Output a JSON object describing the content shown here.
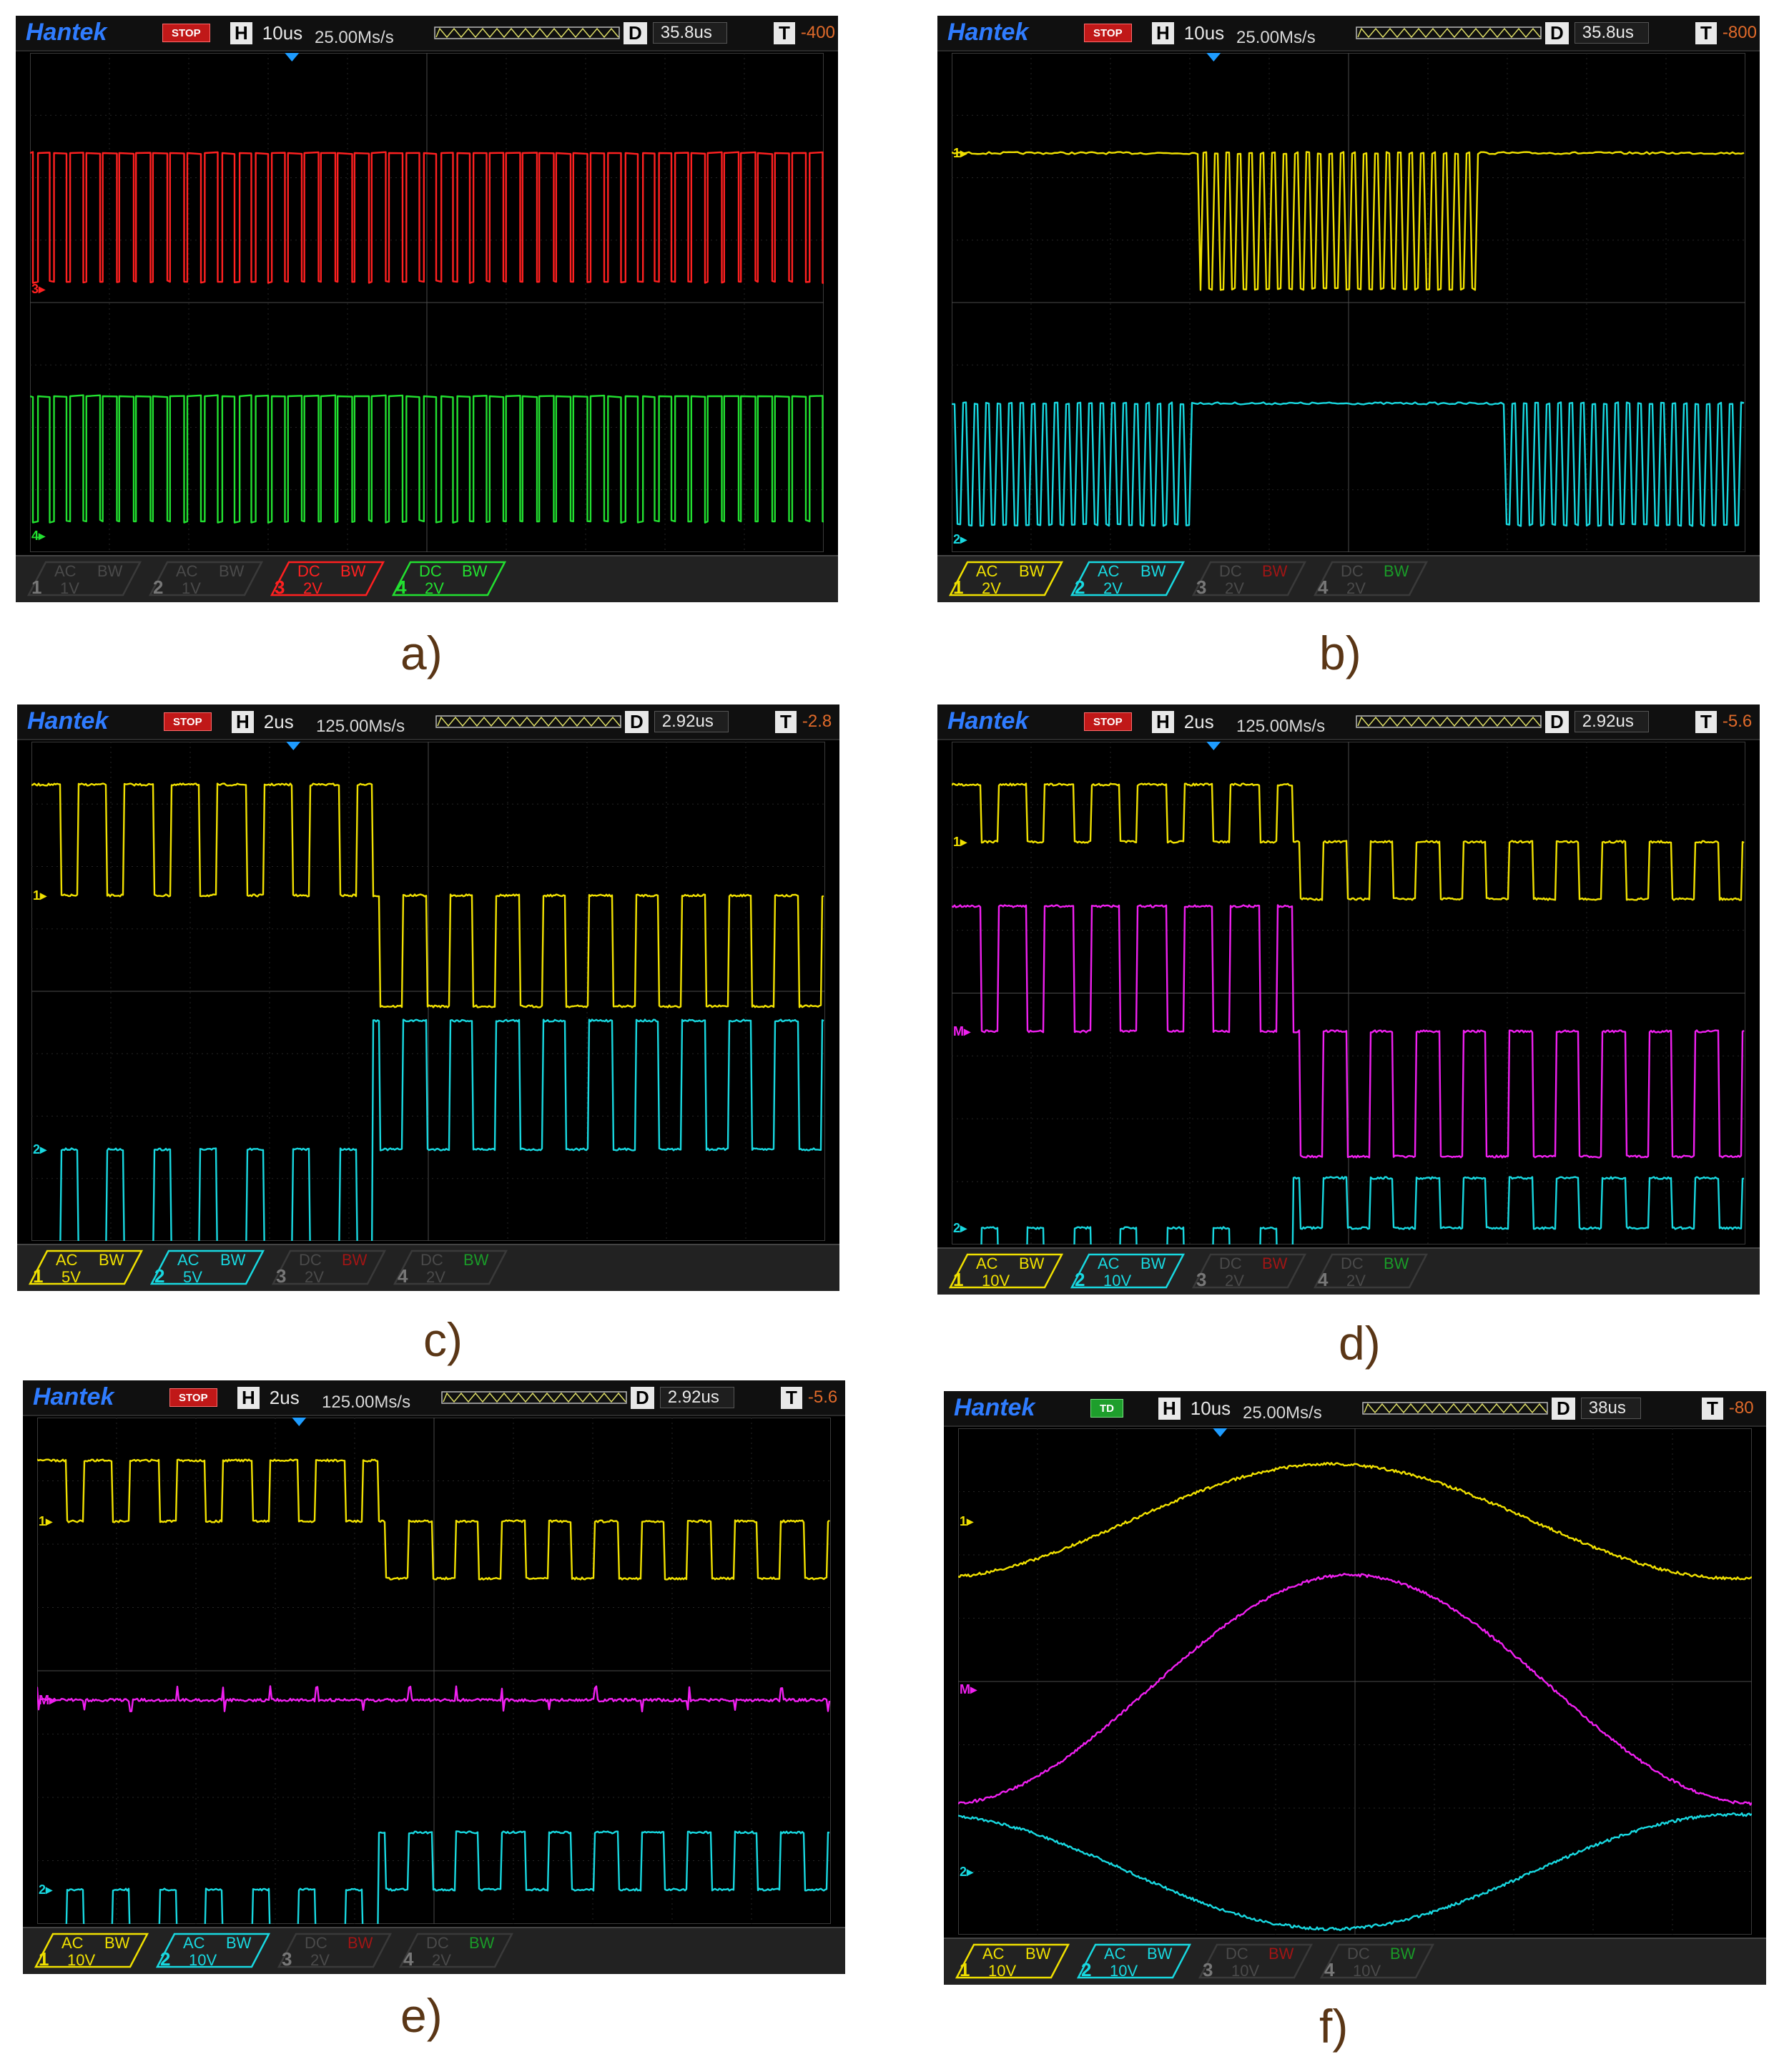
{
  "colors": {
    "ch1": "#f0e000",
    "ch2": "#18d8e0",
    "ch3": "#ff2020",
    "ch4": "#22e030",
    "magenta": "#f020f0",
    "dim": "#555555"
  },
  "scopes": [
    {
      "id": "a",
      "brand": "Hantek",
      "status": "STOP",
      "h_label": "H",
      "timebase": "10us",
      "rate": "25.00Ms/s",
      "d_label": "D",
      "delay": "35.8us",
      "t_label": "T",
      "trigger": "-400",
      "traces": [
        {
          "channel": "3",
          "color": "#ff2020",
          "kind": "square",
          "marker": "3"
        },
        {
          "channel": "4",
          "color": "#22e030",
          "kind": "square",
          "marker": "4"
        }
      ],
      "channels": [
        {
          "num": "1",
          "coupling": "AC",
          "bw": "BW",
          "scale": "1V",
          "active": false,
          "color": "#555555"
        },
        {
          "num": "2",
          "coupling": "AC",
          "bw": "BW",
          "scale": "1V",
          "active": false,
          "color": "#555555"
        },
        {
          "num": "3",
          "coupling": "DC",
          "bw": "BW",
          "scale": "2V",
          "active": true,
          "color": "#ff2020"
        },
        {
          "num": "4",
          "coupling": "DC",
          "bw": "BW",
          "scale": "2V",
          "active": true,
          "color": "#22e030"
        }
      ],
      "caption": "a)"
    },
    {
      "id": "b",
      "brand": "Hantek",
      "status": "STOP",
      "h_label": "H",
      "timebase": "10us",
      "rate": "25.00Ms/s",
      "d_label": "D",
      "delay": "35.8us",
      "t_label": "T",
      "trigger": "-800",
      "traces": [
        {
          "channel": "1",
          "color": "#f0e000",
          "kind": "burst-mid",
          "marker": "1"
        },
        {
          "channel": "2",
          "color": "#18d8e0",
          "kind": "burst-sides",
          "marker": "2"
        }
      ],
      "channels": [
        {
          "num": "1",
          "coupling": "AC",
          "bw": "BW",
          "scale": "2V",
          "active": true,
          "color": "#f0e000"
        },
        {
          "num": "2",
          "coupling": "AC",
          "bw": "BW",
          "scale": "2V",
          "active": true,
          "color": "#18d8e0"
        },
        {
          "num": "3",
          "coupling": "DC",
          "bw": "BW",
          "scale": "2V",
          "active": false,
          "color": "#555555"
        },
        {
          "num": "4",
          "coupling": "DC",
          "bw": "BW",
          "scale": "2V",
          "active": false,
          "color": "#555555"
        }
      ],
      "caption": "b)"
    },
    {
      "id": "c",
      "brand": "Hantek",
      "status": "STOP",
      "h_label": "H",
      "timebase": "2us",
      "rate": "125.00Ms/s",
      "d_label": "D",
      "delay": "2.92us",
      "t_label": "T",
      "trigger": "-2.8",
      "traces": [
        {
          "channel": "1",
          "color": "#f0e000",
          "kind": "pwm-a",
          "marker": "1"
        },
        {
          "channel": "2",
          "color": "#18d8e0",
          "kind": "pwm-b",
          "marker": "2"
        }
      ],
      "channels": [
        {
          "num": "1",
          "coupling": "AC",
          "bw": "BW",
          "scale": "5V",
          "active": true,
          "color": "#f0e000"
        },
        {
          "num": "2",
          "coupling": "AC",
          "bw": "BW",
          "scale": "5V",
          "active": true,
          "color": "#18d8e0"
        },
        {
          "num": "3",
          "coupling": "DC",
          "bw": "BW",
          "scale": "2V",
          "active": false,
          "color": "#555555"
        },
        {
          "num": "4",
          "coupling": "DC",
          "bw": "BW",
          "scale": "2V",
          "active": false,
          "color": "#555555"
        }
      ],
      "caption": "c)"
    },
    {
      "id": "d",
      "brand": "Hantek",
      "status": "STOP",
      "h_label": "H",
      "timebase": "2us",
      "rate": "125.00Ms/s",
      "d_label": "D",
      "delay": "2.92us",
      "t_label": "T",
      "trigger": "-5.6",
      "traces": [
        {
          "channel": "1",
          "color": "#f0e000",
          "kind": "pwm-a",
          "marker": "1"
        },
        {
          "channel": "M",
          "color": "#f020f0",
          "kind": "pwm-a",
          "marker": "M"
        },
        {
          "channel": "2",
          "color": "#18d8e0",
          "kind": "pwm-b",
          "marker": "2"
        }
      ],
      "channels": [
        {
          "num": "1",
          "coupling": "AC",
          "bw": "BW",
          "scale": "10V",
          "active": true,
          "color": "#f0e000"
        },
        {
          "num": "2",
          "coupling": "AC",
          "bw": "BW",
          "scale": "10V",
          "active": true,
          "color": "#18d8e0"
        },
        {
          "num": "3",
          "coupling": "DC",
          "bw": "BW",
          "scale": "2V",
          "active": false,
          "color": "#555555"
        },
        {
          "num": "4",
          "coupling": "DC",
          "bw": "BW",
          "scale": "2V",
          "active": false,
          "color": "#555555"
        }
      ],
      "caption": "d)"
    },
    {
      "id": "e",
      "brand": "Hantek",
      "status": "STOP",
      "h_label": "H",
      "timebase": "2us",
      "rate": "125.00Ms/s",
      "d_label": "D",
      "delay": "2.92us",
      "t_label": "T",
      "trigger": "-5.6",
      "traces": [
        {
          "channel": "1",
          "color": "#f0e000",
          "kind": "pwm-a",
          "marker": "1"
        },
        {
          "channel": "M",
          "color": "#f020f0",
          "kind": "spikes",
          "marker": "M"
        },
        {
          "channel": "2",
          "color": "#18d8e0",
          "kind": "pwm-b",
          "marker": "2"
        }
      ],
      "channels": [
        {
          "num": "1",
          "coupling": "AC",
          "bw": "BW",
          "scale": "10V",
          "active": true,
          "color": "#f0e000"
        },
        {
          "num": "2",
          "coupling": "AC",
          "bw": "BW",
          "scale": "10V",
          "active": true,
          "color": "#18d8e0"
        },
        {
          "num": "3",
          "coupling": "DC",
          "bw": "BW",
          "scale": "2V",
          "active": false,
          "color": "#555555"
        },
        {
          "num": "4",
          "coupling": "DC",
          "bw": "BW",
          "scale": "2V",
          "active": false,
          "color": "#555555"
        }
      ],
      "caption": "e)"
    },
    {
      "id": "f",
      "brand": "Hantek",
      "status": "TD",
      "h_label": "H",
      "timebase": "10us",
      "rate": "25.00Ms/s",
      "d_label": "D",
      "delay": "38us",
      "t_label": "T",
      "trigger": "-80",
      "traces": [
        {
          "channel": "1",
          "color": "#f0e000",
          "kind": "sine-up",
          "marker": "1"
        },
        {
          "channel": "M",
          "color": "#f020f0",
          "kind": "sine-big",
          "marker": "M"
        },
        {
          "channel": "2",
          "color": "#18d8e0",
          "kind": "sine-down",
          "marker": "2"
        }
      ],
      "channels": [
        {
          "num": "1",
          "coupling": "AC",
          "bw": "BW",
          "scale": "10V",
          "active": true,
          "color": "#f0e000"
        },
        {
          "num": "2",
          "coupling": "AC",
          "bw": "BW",
          "scale": "10V",
          "active": true,
          "color": "#18d8e0"
        },
        {
          "num": "3",
          "coupling": "DC",
          "bw": "BW",
          "scale": "10V",
          "active": false,
          "color": "#555555"
        },
        {
          "num": "4",
          "coupling": "DC",
          "bw": "BW",
          "scale": "10V",
          "active": false,
          "color": "#555555"
        }
      ],
      "caption": "f)"
    }
  ]
}
